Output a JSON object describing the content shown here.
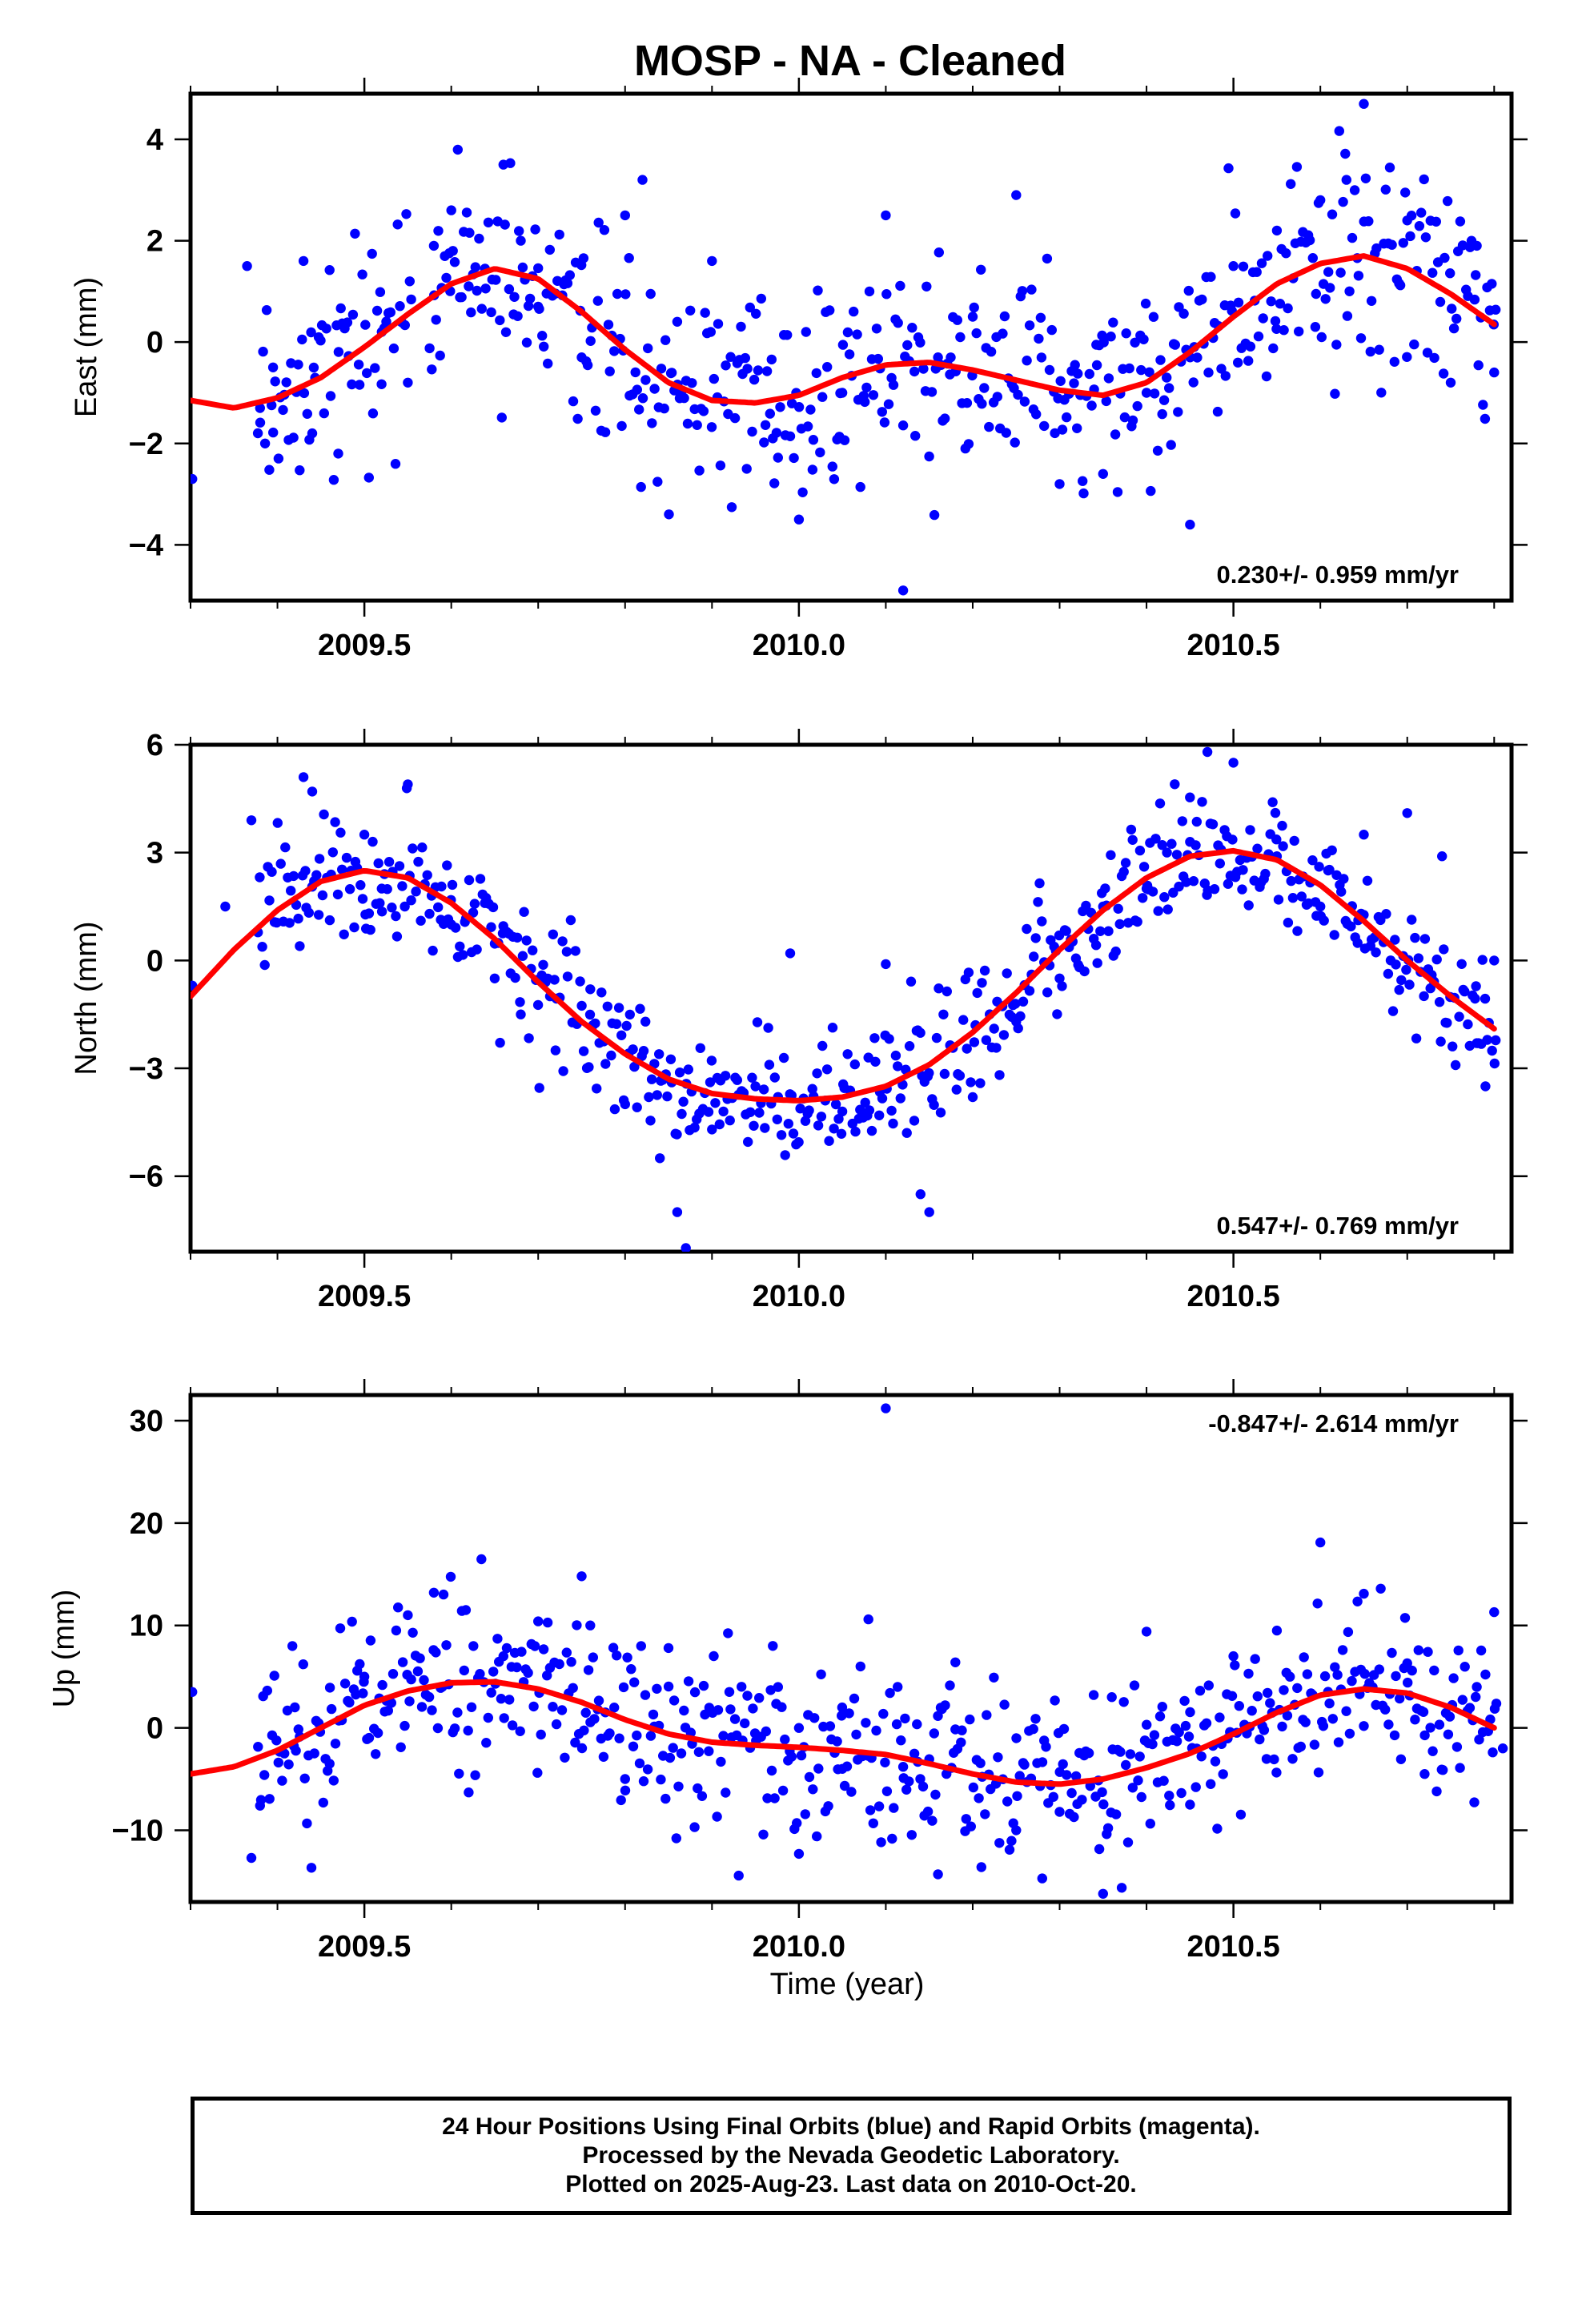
{
  "title": "MOSP  - NA - Cleaned",
  "colors": {
    "final_orbits": "#0000ff",
    "fit_curve": "#ff0000",
    "axes": "#000000"
  },
  "footer": {
    "line1": "24 Hour Positions Using Final Orbits (blue) and Rapid Orbits (magenta).",
    "line2": "Processed by the Nevada Geodetic Laboratory.",
    "line3": "Plotted on 2025-Aug-23. Last data on 2010-Oct-20."
  },
  "chart_data": [
    {
      "type": "scatter",
      "ylabel": "East (mm)",
      "xlabel": "",
      "xlim": [
        2009.3,
        2010.82
      ],
      "ylim": [
        -5.1,
        4.9
      ],
      "xticks": [
        2009.5,
        2010.0,
        2010.5
      ],
      "xtick_labels": [
        "2009.5",
        "2010.0",
        "2010.5"
      ],
      "yticks": [
        -4,
        -2,
        0,
        2,
        4
      ],
      "ytick_labels": [
        "−4",
        "−2",
        "0",
        "2",
        "4"
      ],
      "annotation": "0.230+/- 0.959 mm/yr",
      "series": [
        {
          "kind": "points",
          "color": "#0000ff",
          "style": "scattered",
          "x": [
            2009.302,
            2009.365,
            2009.38,
            2009.395,
            2009.43,
            2009.44,
            2009.47,
            2009.52,
            2009.55,
            2009.58,
            2009.6,
            2009.62,
            2009.66,
            2009.68,
            2009.7,
            2009.75,
            2009.8,
            2009.82,
            2009.86,
            2009.9,
            2009.94,
            2009.97,
            2010.0,
            2010.05,
            2010.1,
            2010.12,
            2010.16,
            2010.2,
            2010.25,
            2010.3,
            2010.32,
            2010.35,
            2010.4,
            2010.45,
            2010.5,
            2010.55,
            2010.6,
            2010.63,
            2010.65,
            2010.7,
            2010.75,
            2010.78,
            2010.8
          ],
          "y": [
            -2.7,
            1.5,
            -1.3,
            -0.5,
            1.6,
            -1.8,
            -2.2,
            0.2,
            -0.8,
            1.9,
            2.6,
            1.1,
            3.5,
            2.0,
            0.7,
            -0.3,
            2.5,
            3.2,
            0.4,
            1.6,
            -2.5,
            -1.9,
            -3.5,
            -1.0,
            2.5,
            -4.9,
            -0.3,
            0.5,
            2.9,
            -2.8,
            -1.7,
            -2.6,
            -1.0,
            -3.6,
            1.5,
            2.2,
            2.8,
            3.2,
            4.7,
            2.4,
            -0.8,
            1.9,
            -0.6
          ]
        }
      ],
      "fit": {
        "kind": "curve",
        "color": "#ff0000",
        "name": "",
        "x": [
          2009.3,
          2009.35,
          2009.4,
          2009.45,
          2009.5,
          2009.55,
          2009.6,
          2009.65,
          2009.7,
          2009.75,
          2009.8,
          2009.85,
          2009.9,
          2009.95,
          2010.0,
          2010.05,
          2010.1,
          2010.15,
          2010.2,
          2010.25,
          2010.3,
          2010.35,
          2010.4,
          2010.45,
          2010.5,
          2010.55,
          2010.6,
          2010.65,
          2010.7,
          2010.75,
          2010.8
        ],
        "y": [
          -1.15,
          -1.3,
          -1.1,
          -0.7,
          -0.1,
          0.55,
          1.15,
          1.45,
          1.25,
          0.6,
          -0.15,
          -0.8,
          -1.15,
          -1.2,
          -1.05,
          -0.7,
          -0.45,
          -0.4,
          -0.55,
          -0.75,
          -0.95,
          -1.05,
          -0.8,
          -0.2,
          0.5,
          1.15,
          1.55,
          1.7,
          1.45,
          0.95,
          0.35
        ]
      }
    },
    {
      "type": "scatter",
      "ylabel": "North (mm)",
      "xlabel": "",
      "xlim": [
        2009.3,
        2010.82
      ],
      "ylim": [
        -8.1,
        6.0
      ],
      "xticks": [
        2009.5,
        2010.0,
        2010.5
      ],
      "xtick_labels": [
        "2009.5",
        "2010.0",
        "2010.5"
      ],
      "yticks": [
        -6,
        -3,
        0,
        3,
        6
      ],
      "ytick_labels": [
        "−6",
        "−3",
        "0",
        "3",
        "6"
      ],
      "annotation": "0.547+/- 0.769 mm/yr",
      "series": [
        {
          "kind": "points",
          "color": "#0000ff",
          "style": "scattered",
          "x": [
            2009.302,
            2009.34,
            2009.37,
            2009.43,
            2009.44,
            2009.5,
            2009.52,
            2009.55,
            2009.6,
            2009.65,
            2009.68,
            2009.72,
            2009.76,
            2009.8,
            2009.84,
            2009.86,
            2009.87,
            2009.9,
            2009.95,
            2009.99,
            2010.05,
            2010.08,
            2010.1,
            2010.14,
            2010.15,
            2010.2,
            2010.25,
            2010.3,
            2010.35,
            2010.4,
            2010.45,
            2010.47,
            2010.5,
            2010.55,
            2010.6,
            2010.65,
            2010.7,
            2010.74,
            2010.78,
            2010.79,
            2010.8
          ],
          "y": [
            -0.7,
            1.5,
            3.9,
            5.1,
            4.7,
            3.5,
            2.0,
            4.9,
            1.0,
            -0.5,
            -1.5,
            -2.5,
            -0.8,
            -4.0,
            -5.5,
            -7.0,
            -8.0,
            -4.7,
            -3.5,
            0.2,
            -4.2,
            -2.7,
            -0.1,
            -6.5,
            -7.0,
            -3.8,
            -1.7,
            -0.5,
            1.5,
            2.0,
            3.3,
            5.8,
            5.5,
            2.9,
            1.5,
            3.5,
            4.1,
            2.9,
            -2.3,
            -3.5,
            0.0
          ]
        }
      ],
      "fit": {
        "kind": "curve",
        "color": "#ff0000",
        "name": "",
        "x": [
          2009.3,
          2009.35,
          2009.4,
          2009.45,
          2009.5,
          2009.55,
          2009.6,
          2009.65,
          2009.7,
          2009.75,
          2009.8,
          2009.85,
          2009.9,
          2009.95,
          2010.0,
          2010.05,
          2010.1,
          2010.15,
          2010.2,
          2010.25,
          2010.3,
          2010.35,
          2010.4,
          2010.45,
          2010.5,
          2010.55,
          2010.6,
          2010.65,
          2010.7,
          2010.75,
          2010.8
        ],
        "y": [
          -1.0,
          0.3,
          1.4,
          2.2,
          2.5,
          2.3,
          1.6,
          0.6,
          -0.6,
          -1.7,
          -2.6,
          -3.3,
          -3.7,
          -3.85,
          -3.9,
          -3.8,
          -3.5,
          -2.9,
          -2.0,
          -0.9,
          0.3,
          1.4,
          2.3,
          2.9,
          3.05,
          2.8,
          2.1,
          1.1,
          0.0,
          -1.0,
          -1.9
        ]
      }
    },
    {
      "type": "scatter",
      "ylabel": "Up (mm)",
      "xlabel": "Time (year)",
      "xlim": [
        2009.3,
        2010.82
      ],
      "ylim": [
        -17,
        32.5
      ],
      "xticks": [
        2009.5,
        2010.0,
        2010.5
      ],
      "xtick_labels": [
        "2009.5",
        "2010.0",
        "2010.5"
      ],
      "yticks": [
        -10,
        0,
        10,
        20,
        30
      ],
      "ytick_labels": [
        "−10",
        "0",
        "10",
        "20",
        "30"
      ],
      "annotation": "-0.847+/- 2.614 mm/yr",
      "series": [
        {
          "kind": "points",
          "color": "#0000ff",
          "style": "scattered",
          "x": [
            2009.302,
            2009.37,
            2009.38,
            2009.42,
            2009.46,
            2009.5,
            2009.55,
            2009.58,
            2009.62,
            2009.66,
            2009.7,
            2009.75,
            2009.76,
            2009.8,
            2009.85,
            2009.88,
            2009.92,
            2009.97,
            2010.0,
            2010.05,
            2010.08,
            2010.1,
            2010.12,
            2010.16,
            2010.18,
            2010.21,
            2010.25,
            2010.28,
            2010.3,
            2010.35,
            2010.36,
            2010.4,
            2010.45,
            2010.5,
            2010.55,
            2010.58,
            2010.6,
            2010.65,
            2010.7,
            2010.72,
            2010.78,
            2010.8,
            2010.81
          ],
          "y": [
            3.5,
            -12.7,
            -7.6,
            2.0,
            -3.5,
            5.0,
            11.0,
            13.2,
            -6.3,
            7.0,
            10.4,
            14.8,
            10.0,
            -5.0,
            7.8,
            -9.7,
            3.5,
            8.0,
            -12.3,
            -4.0,
            10.6,
            31.2,
            -3.8,
            -14.3,
            6.4,
            -13.6,
            -10.0,
            -14.7,
            -8.2,
            -16.2,
            3.0,
            9.4,
            -7.5,
            7.0,
            9.5,
            0.8,
            18.1,
            13.1,
            6.3,
            -4.5,
            4.0,
            11.3,
            -2.0
          ]
        }
      ],
      "fit": {
        "kind": "curve",
        "color": "#ff0000",
        "name": "",
        "x": [
          2009.3,
          2009.35,
          2009.4,
          2009.45,
          2009.5,
          2009.55,
          2009.6,
          2009.65,
          2009.7,
          2009.75,
          2009.8,
          2009.85,
          2009.9,
          2009.95,
          2010.0,
          2010.05,
          2010.1,
          2010.15,
          2010.2,
          2010.25,
          2010.3,
          2010.35,
          2010.4,
          2010.45,
          2010.5,
          2010.55,
          2010.6,
          2010.65,
          2010.7,
          2010.75,
          2010.8
        ],
        "y": [
          -4.5,
          -3.8,
          -2.2,
          0.0,
          2.2,
          3.6,
          4.4,
          4.5,
          3.8,
          2.5,
          0.8,
          -0.6,
          -1.4,
          -1.7,
          -1.9,
          -2.2,
          -2.6,
          -3.5,
          -4.5,
          -5.3,
          -5.5,
          -5.0,
          -3.9,
          -2.5,
          -0.6,
          1.5,
          3.2,
          3.8,
          3.4,
          2.0,
          0.0
        ]
      }
    }
  ]
}
